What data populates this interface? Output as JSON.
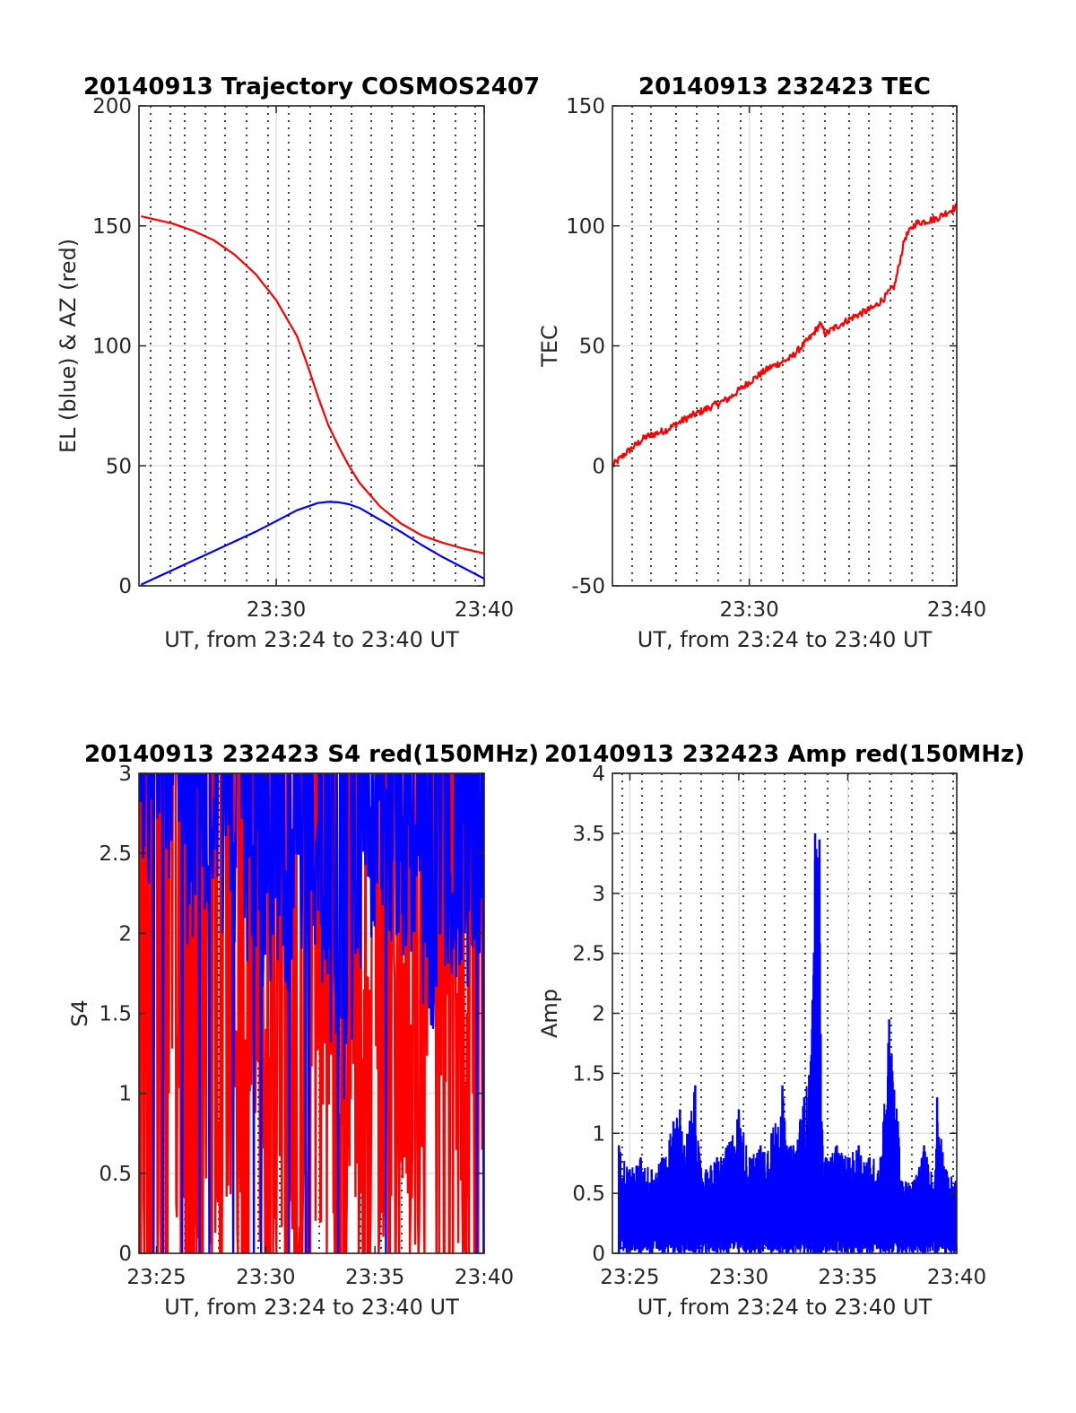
{
  "chart_data": [
    {
      "type": "line",
      "title": "20140913 Trajectory COSMOS2407",
      "xlabel": "UT, from 23:24 to 23:40 UT",
      "ylabel": "EL (blue) & AZ (red)",
      "xlim": [
        23.4,
        40
      ],
      "ylim": [
        0,
        200
      ],
      "xticks": [
        {
          "value": 30,
          "label": "23:30"
        },
        {
          "value": 40,
          "label": "23:40"
        }
      ],
      "yticks": [
        0,
        50,
        100,
        150,
        200
      ],
      "grid": true,
      "colors": {
        "el": "#0000ff",
        "az": "#ff0000"
      },
      "series": [
        {
          "key": "el",
          "x": [
            23.5,
            24,
            25,
            26,
            27,
            28,
            29,
            30,
            31,
            31.5,
            32,
            32.5,
            33,
            33.5,
            34,
            35,
            36,
            37,
            38,
            39,
            40
          ],
          "values": [
            0.5,
            2.5,
            6.5,
            10.5,
            14.5,
            18.5,
            22.5,
            27,
            31.5,
            33,
            34.5,
            35,
            34.8,
            34,
            32.5,
            27.5,
            22.5,
            17,
            12,
            7.5,
            3
          ]
        },
        {
          "key": "az",
          "x": [
            23.5,
            24,
            25,
            26,
            27,
            28,
            29,
            30,
            31,
            31.5,
            32,
            32.5,
            33,
            33.5,
            34,
            35,
            36,
            37,
            38,
            39,
            40
          ],
          "values": [
            154,
            153,
            151,
            148,
            144,
            138,
            130,
            119,
            104,
            92,
            79,
            67,
            58,
            50,
            43,
            33,
            26,
            21,
            18,
            15.5,
            13.5
          ]
        }
      ]
    },
    {
      "type": "line",
      "title": "20140913 232423 TEC",
      "xlabel": "UT, from 23:24 to 23:40 UT",
      "ylabel": "TEC",
      "xlim": [
        23.4,
        40
      ],
      "ylim": [
        -50,
        150
      ],
      "xticks": [
        {
          "value": 30,
          "label": "23:30"
        },
        {
          "value": 40,
          "label": "23:40"
        }
      ],
      "yticks": [
        -50,
        0,
        50,
        100,
        150
      ],
      "grid": true,
      "colors": {
        "tec": "#ff0000"
      },
      "series": [
        {
          "key": "tec",
          "x": [
            23.4,
            24,
            25,
            26,
            27,
            28,
            29,
            30,
            31,
            32,
            33,
            33.4,
            33.7,
            34,
            35,
            36,
            36.5,
            37,
            37.5,
            38,
            39,
            40
          ],
          "values": [
            0,
            5,
            12,
            15,
            20,
            24,
            28,
            35,
            41,
            45,
            54,
            59,
            55,
            57,
            62,
            66,
            70,
            75,
            95,
            101,
            103,
            108
          ]
        }
      ]
    },
    {
      "type": "line",
      "title": "20140913 232423 S4 red(150MHz)",
      "xlabel": "UT, from 23:24 to 23:40 UT",
      "ylabel": "S4",
      "xlim": [
        24.2,
        40
      ],
      "ylim": [
        0,
        3
      ],
      "xticks": [
        {
          "value": 25,
          "label": "23:25"
        },
        {
          "value": 30,
          "label": "23:30"
        },
        {
          "value": 35,
          "label": "23:35"
        },
        {
          "value": 40,
          "label": "23:40"
        }
      ],
      "yticks": [
        0,
        0.5,
        1,
        1.5,
        2,
        2.5,
        3
      ],
      "grid": true,
      "colors": {
        "s4_blue": "#0000ff",
        "s4_red": "#ff0000"
      },
      "series": [
        {
          "key": "s4_blue",
          "x": [
            24.2,
            24.5,
            25,
            25.5,
            26,
            26.5,
            27,
            27.5,
            28,
            28.5,
            29,
            29.5,
            30,
            30.5,
            31,
            31.5,
            32,
            32.5,
            33,
            33.5,
            34,
            34.5,
            35,
            35.5,
            36,
            36.5,
            37,
            37.5,
            38,
            38.5,
            39,
            39.5,
            40
          ],
          "values": [
            3,
            2.7,
            3,
            2.8,
            3,
            2.3,
            2.6,
            2.5,
            2.4,
            2.3,
            2.2,
            2.3,
            2.0,
            2.2,
            2.1,
            2.3,
            2.5,
            2.2,
            1.5,
            1.2,
            1.8,
            2.4,
            2.3,
            2.5,
            2.3,
            2.4,
            2.3,
            1.6,
            2.5,
            2.0,
            2.3,
            2.0,
            2.2
          ]
        },
        {
          "key": "s4_red",
          "x": [
            24.2,
            24.5,
            25,
            25.5,
            26,
            26.5,
            27,
            27.5,
            28,
            28.5,
            29,
            29.5,
            30,
            30.5,
            31,
            31.5,
            32,
            32.5,
            33,
            33.5,
            34,
            34.5,
            35,
            35.5,
            36,
            36.5,
            37,
            37.5,
            38,
            38.5,
            39,
            39.5,
            40
          ],
          "values": [
            1.3,
            0.0,
            0.6,
            2.0,
            1.5,
            0.4,
            1.8,
            1.6,
            1.7,
            1.1,
            2.1,
            1.5,
            1.6,
            1.8,
            1.6,
            0.6,
            1.8,
            1.7,
            1.9,
            1.0,
            1.6,
            1.9,
            1.5,
            1.7,
            2.1,
            1.7,
            1.2,
            2.5,
            1.6,
            1.9,
            1.4,
            2.3,
            1.9
          ]
        }
      ]
    },
    {
      "type": "line",
      "title": "20140913 232423 Amp red(150MHz)",
      "xlabel": "UT, from 23:24 to 23:40 UT",
      "ylabel": "Amp",
      "xlim": [
        24.2,
        40
      ],
      "ylim": [
        0,
        4
      ],
      "xticks": [
        {
          "value": 25,
          "label": "23:25"
        },
        {
          "value": 30,
          "label": "23:30"
        },
        {
          "value": 35,
          "label": "23:35"
        },
        {
          "value": 40,
          "label": "23:40"
        }
      ],
      "yticks": [
        0,
        0.5,
        1,
        1.5,
        2,
        2.5,
        3,
        3.5,
        4
      ],
      "grid": true,
      "colors": {
        "amp": "#0000ff"
      },
      "series": [
        {
          "key": "amp",
          "x": [
            24.5,
            25,
            25.5,
            26,
            26.5,
            27,
            27.3,
            27.5,
            28,
            28.2,
            28.5,
            29,
            29.5,
            30,
            30.5,
            31,
            31.5,
            32,
            32.2,
            32.5,
            33,
            33.3,
            33.5,
            33.6,
            33.7,
            33.8,
            34,
            34.5,
            35,
            35.5,
            36,
            36.5,
            36.9,
            37.3,
            37.5,
            38,
            38.5,
            39,
            39.1,
            39.5,
            40
          ],
          "values": [
            0.9,
            0.7,
            0.8,
            0.7,
            0.8,
            1.1,
            1.2,
            0.9,
            1.4,
            0.8,
            0.7,
            0.8,
            0.9,
            1.2,
            0.8,
            0.9,
            1.0,
            1.4,
            0.9,
            0.9,
            1.3,
            1.6,
            3.5,
            3.3,
            3.45,
            1.1,
            0.8,
            0.9,
            0.8,
            0.9,
            0.8,
            0.8,
            1.95,
            1.1,
            0.6,
            0.6,
            0.9,
            0.6,
            1.3,
            0.7,
            0.6
          ]
        }
      ]
    }
  ]
}
